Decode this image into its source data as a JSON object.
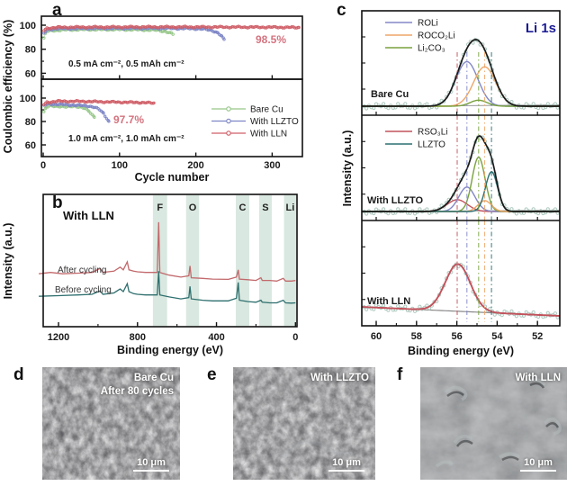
{
  "figure": {
    "labels": {
      "a": "a",
      "b": "b",
      "c": "c",
      "d": "d",
      "e": "e",
      "f": "f"
    }
  },
  "colors": {
    "bare_cu": "#96c789",
    "with_llzto": "#7e86c6",
    "with_lln": "#cf5f68",
    "annotation_red": "#d4737f",
    "survey_after": "#c2696c",
    "survey_before": "#2e6f6e",
    "band_green": "#d9e8e0",
    "scatter": "#afc9bf",
    "envelope": "#1a1a1a",
    "baseline": "#8a8a8a",
    "roli": "#8387c7",
    "roco2li": "#eda668",
    "li2co3": "#79a23e",
    "rso3li": "#c2525b",
    "llzto_comp": "#2b7072",
    "li1s_title": "#1b1b94",
    "frame": "#111111"
  },
  "chart_data": [
    {
      "id": "a",
      "type": "scatter-line",
      "xlabel": "Cycle number",
      "ylabel": "Coulombic efficiency (%)",
      "x_ticks": [
        0,
        100,
        200,
        300
      ],
      "xlim": [
        0,
        340
      ],
      "subplots": [
        {
          "annotation": "0.5 mA cm⁻², 0.5 mAh cm⁻²",
          "highlight": "98.5%",
          "y_ticks": [
            60,
            80,
            100
          ],
          "ylim": [
            52,
            107
          ],
          "series": [
            {
              "name": "Bare Cu",
              "color_key": "bare_cu",
              "points": [
                [
                  1,
                  89
                ],
                [
                  4,
                  94.5
                ],
                [
                  10,
                  95.5
                ],
                [
                  30,
                  96.2
                ],
                [
                  60,
                  96.4
                ],
                [
                  100,
                  96.4
                ],
                [
                  130,
                  96.2
                ],
                [
                  150,
                  95.8
                ],
                [
                  160,
                  94.8
                ],
                [
                  166,
                  93.5
                ],
                [
                  170,
                  92.5
                ]
              ]
            },
            {
              "name": "With LLZTO",
              "color_key": "with_llzto",
              "points": [
                [
                  1,
                  93
                ],
                [
                  5,
                  96
                ],
                [
                  15,
                  97
                ],
                [
                  50,
                  97.3
                ],
                [
                  100,
                  97.4
                ],
                [
                  150,
                  97.4
                ],
                [
                  195,
                  97.2
                ],
                [
                  210,
                  96.8
                ],
                [
                  222,
                  95.5
                ],
                [
                  229,
                  93.5
                ],
                [
                  234,
                  90.5
                ],
                [
                  237,
                  88
                ]
              ]
            },
            {
              "name": "With LLN",
              "color_key": "with_lln",
              "points": [
                [
                  1,
                  95.5
                ],
                [
                  5,
                  97.5
                ],
                [
                  20,
                  98.2
                ],
                [
                  60,
                  98.4
                ],
                [
                  120,
                  98.5
                ],
                [
                  200,
                  98.5
                ],
                [
                  260,
                  98.4
                ],
                [
                  300,
                  98.3
                ],
                [
                  320,
                  98.2
                ],
                [
                  335,
                  98
                ]
              ]
            }
          ]
        },
        {
          "annotation": "1.0 mA cm⁻², 1.0 mAh cm⁻²",
          "highlight": "97.7%",
          "y_ticks": [
            60,
            80,
            100
          ],
          "ylim": [
            46,
            116
          ],
          "series": [
            {
              "name": "Bare Cu",
              "color_key": "bare_cu",
              "points": [
                [
                  1,
                  88
                ],
                [
                  4,
                  92
                ],
                [
                  10,
                  93.5
                ],
                [
                  20,
                  93
                ],
                [
                  30,
                  92.3
                ],
                [
                  40,
                  93.4
                ],
                [
                  48,
                  92.2
                ],
                [
                  55,
                  91
                ],
                [
                  60,
                  89
                ],
                [
                  64,
                  86
                ],
                [
                  67,
                  84
                ]
              ]
            },
            {
              "name": "With LLZTO",
              "color_key": "with_llzto",
              "points": [
                [
                  1,
                  93.5
                ],
                [
                  6,
                  95
                ],
                [
                  20,
                  94.6
                ],
                [
                  35,
                  94.2
                ],
                [
                  50,
                  93.6
                ],
                [
                  60,
                  93.2
                ],
                [
                  68,
                  92
                ],
                [
                  74,
                  90
                ],
                [
                  79,
                  87
                ],
                [
                  83,
                  83
                ],
                [
                  86,
                  80
                ]
              ]
            },
            {
              "name": "With LLN",
              "color_key": "with_lln",
              "points": [
                [
                  1,
                  94.5
                ],
                [
                  5,
                  96.5
                ],
                [
                  20,
                  97.3
                ],
                [
                  50,
                  97.2
                ],
                [
                  80,
                  96.8
                ],
                [
                  110,
                  96.4
                ],
                [
                  130,
                  96.2
                ],
                [
                  145,
                  95.7
                ]
              ]
            }
          ],
          "legend": [
            {
              "label": "Bare Cu",
              "color_key": "bare_cu"
            },
            {
              "label": "With LLZTO",
              "color_key": "with_llzto"
            },
            {
              "label": "With LLN",
              "color_key": "with_lln"
            }
          ]
        }
      ]
    },
    {
      "id": "b",
      "type": "line",
      "title": "With LLN",
      "xlabel": "Binding energy (eV)",
      "ylabel": "Intensity (a.u.)",
      "x_ticks": [
        1200,
        800,
        400,
        0
      ],
      "x_minor_ticks": [
        1000,
        600,
        200
      ],
      "xlim": [
        1300,
        -10
      ],
      "bands": [
        {
          "label": "F",
          "range": [
            650,
            722
          ]
        },
        {
          "label": "O",
          "range": [
            488,
            554
          ]
        },
        {
          "label": "C",
          "range": [
            234,
            302
          ]
        },
        {
          "label": "S",
          "range": [
            120,
            184
          ]
        },
        {
          "label": "Li",
          "range": [
            -8,
            58
          ]
        }
      ],
      "series": [
        {
          "name": "After cycling",
          "color_key": "survey_after",
          "points": [
            [
              1300,
              0.4
            ],
            [
              1240,
              0.41
            ],
            [
              1180,
              0.4
            ],
            [
              1100,
              0.405
            ],
            [
              1030,
              0.41
            ],
            [
              990,
              0.44
            ],
            [
              975,
              0.41
            ],
            [
              950,
              0.415
            ],
            [
              920,
              0.42
            ],
            [
              888,
              0.45
            ],
            [
              872,
              0.43
            ],
            [
              852,
              0.49
            ],
            [
              843,
              0.43
            ],
            [
              820,
              0.42
            ],
            [
              800,
              0.415
            ],
            [
              760,
              0.41
            ],
            [
              700,
              0.41
            ],
            [
              693,
              0.79
            ],
            [
              687,
              0.41
            ],
            [
              640,
              0.39
            ],
            [
              580,
              0.375
            ],
            [
              540,
              0.385
            ],
            [
              534,
              0.46
            ],
            [
              528,
              0.37
            ],
            [
              470,
              0.365
            ],
            [
              420,
              0.36
            ],
            [
              340,
              0.358
            ],
            [
              299,
              0.375
            ],
            [
              290,
              0.43
            ],
            [
              284,
              0.36
            ],
            [
              240,
              0.355
            ],
            [
              200,
              0.35
            ],
            [
              175,
              0.37
            ],
            [
              168,
              0.35
            ],
            [
              130,
              0.35
            ],
            [
              95,
              0.345
            ],
            [
              62,
              0.365
            ],
            [
              50,
              0.345
            ],
            [
              20,
              0.345
            ],
            [
              0,
              0.35
            ]
          ]
        },
        {
          "name": "Before cycling",
          "color_key": "survey_before",
          "points": [
            [
              1300,
              0.23
            ],
            [
              1200,
              0.235
            ],
            [
              1100,
              0.24
            ],
            [
              1030,
              0.245
            ],
            [
              990,
              0.27
            ],
            [
              975,
              0.245
            ],
            [
              950,
              0.25
            ],
            [
              920,
              0.255
            ],
            [
              888,
              0.285
            ],
            [
              872,
              0.265
            ],
            [
              852,
              0.325
            ],
            [
              843,
              0.265
            ],
            [
              820,
              0.25
            ],
            [
              800,
              0.245
            ],
            [
              760,
              0.24
            ],
            [
              700,
              0.24
            ],
            [
              693,
              0.42
            ],
            [
              687,
              0.24
            ],
            [
              640,
              0.225
            ],
            [
              580,
              0.21
            ],
            [
              540,
              0.22
            ],
            [
              534,
              0.305
            ],
            [
              528,
              0.21
            ],
            [
              470,
              0.2
            ],
            [
              420,
              0.195
            ],
            [
              340,
              0.195
            ],
            [
              299,
              0.215
            ],
            [
              290,
              0.335
            ],
            [
              284,
              0.2
            ],
            [
              240,
              0.19
            ],
            [
              200,
              0.185
            ],
            [
              175,
              0.2
            ],
            [
              168,
              0.185
            ],
            [
              130,
              0.18
            ],
            [
              95,
              0.18
            ],
            [
              62,
              0.2
            ],
            [
              50,
              0.18
            ],
            [
              20,
              0.178
            ],
            [
              0,
              0.18
            ]
          ]
        }
      ]
    },
    {
      "id": "c",
      "type": "line",
      "title": "Li 1s",
      "xlabel": "Binding energy (eV)",
      "ylabel": "Intensity (a.u.)",
      "x_ticks": [
        60,
        58,
        56,
        54,
        52
      ],
      "xlim": [
        60.7,
        50.9
      ],
      "guide_lines": [
        {
          "x": 55.98,
          "color_key": "rso3li"
        },
        {
          "x": 55.5,
          "color_key": "roli"
        },
        {
          "x": 54.92,
          "color_key": "li2co3"
        },
        {
          "x": 54.62,
          "color_key": "roco2li"
        },
        {
          "x": 54.28,
          "color_key": "llzto_comp"
        }
      ],
      "subplots": [
        {
          "label": "Bare Cu",
          "legend": [
            {
              "label": "ROLi",
              "color_key": "roli"
            },
            {
              "label": "ROCO₂Li",
              "color_key": "roco2li"
            },
            {
              "label": "Li₂CO₃",
              "color_key": "li2co3"
            }
          ],
          "peaks": [
            {
              "name": "ROLi",
              "color_key": "roli",
              "center": 55.5,
              "sigma": 0.55,
              "amp": 0.52
            },
            {
              "name": "ROCO₂Li",
              "color_key": "roco2li",
              "center": 54.62,
              "sigma": 0.55,
              "amp": 0.46
            },
            {
              "name": "Li₂CO₃",
              "color_key": "li2co3",
              "center": 54.92,
              "sigma": 0.42,
              "amp": 0.07
            }
          ]
        },
        {
          "label": "With LLZTO",
          "legend": [
            {
              "label": "RSO₃Li",
              "color_key": "rso3li"
            },
            {
              "label": "LLZTO",
              "color_key": "llzto_comp"
            }
          ],
          "peaks": [
            {
              "name": "RSO₃Li",
              "color_key": "rso3li",
              "center": 55.98,
              "sigma": 0.5,
              "amp": 0.13
            },
            {
              "name": "ROLi",
              "color_key": "roli",
              "center": 55.5,
              "sigma": 0.4,
              "amp": 0.27
            },
            {
              "name": "Li₂CO₃",
              "color_key": "li2co3",
              "center": 54.92,
              "sigma": 0.32,
              "amp": 0.6
            },
            {
              "name": "ROCO₂Li",
              "color_key": "roco2li",
              "center": 54.62,
              "sigma": 0.33,
              "amp": 0.12
            },
            {
              "name": "LLZTO",
              "color_key": "llzto_comp",
              "center": 54.28,
              "sigma": 0.3,
              "amp": 0.44
            }
          ]
        },
        {
          "label": "With LLN",
          "single": true,
          "peaks": [
            {
              "name": "RSO₃Li",
              "color_key": "rso3li",
              "center": 55.95,
              "sigma": 0.62,
              "amp": 0.42
            }
          ]
        }
      ]
    }
  ],
  "sem_panels": [
    {
      "id": "d",
      "line1": "Bare Cu",
      "line2": "After 80 cycles",
      "scale_bar": "10 μm"
    },
    {
      "id": "e",
      "line1": "With LLZTO",
      "scale_bar": "10 μm"
    },
    {
      "id": "f",
      "line1": "With LLN",
      "scale_bar": "10 μm"
    }
  ]
}
